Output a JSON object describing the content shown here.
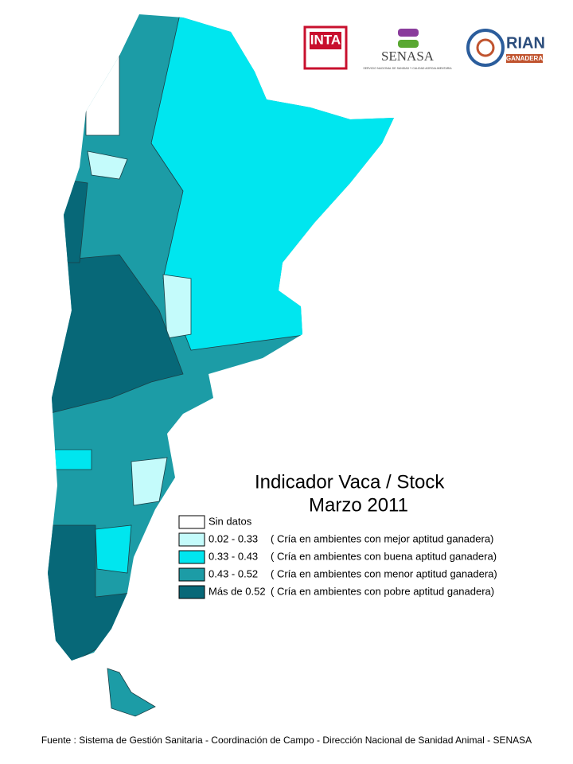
{
  "logos": {
    "inta": "INTA",
    "senasa": "SENASA",
    "senasa_subtitle": "SERVICIO NACIONAL DE SANIDAD Y CALIDAD AGROALIMENTARIA",
    "rian": "RIAN",
    "rian_sub": "GANADERA"
  },
  "map": {
    "title": "Indicador Vaca / Stock",
    "subtitle": "Marzo 2011",
    "legend": [
      {
        "label": "Sin datos",
        "color": "#ffffff"
      },
      {
        "label": "0.02 - 0.33",
        "description": "( Cría en ambientes con mejor aptitud ganadera)",
        "color": "#c4fbfb"
      },
      {
        "label": "0.33 - 0.43",
        "description": "( Cría en ambientes con  buena aptitud ganadera)",
        "color": "#00e6ef"
      },
      {
        "label": "0.43 - 0.52",
        "description": "( Cría en ambientes con menor aptitud ganadera)",
        "color": "#1c9ca6"
      },
      {
        "label": "Más de 0.52",
        "description": "(  Cría en ambientes  con  pobre aptitud ganadera)",
        "color": "#076878"
      }
    ]
  },
  "footer": {
    "source": "Fuente : Sistema de Gestión Sanitaria - Coordinación de Campo - Dirección Nacional de Sanidad Animal - SENASA"
  }
}
